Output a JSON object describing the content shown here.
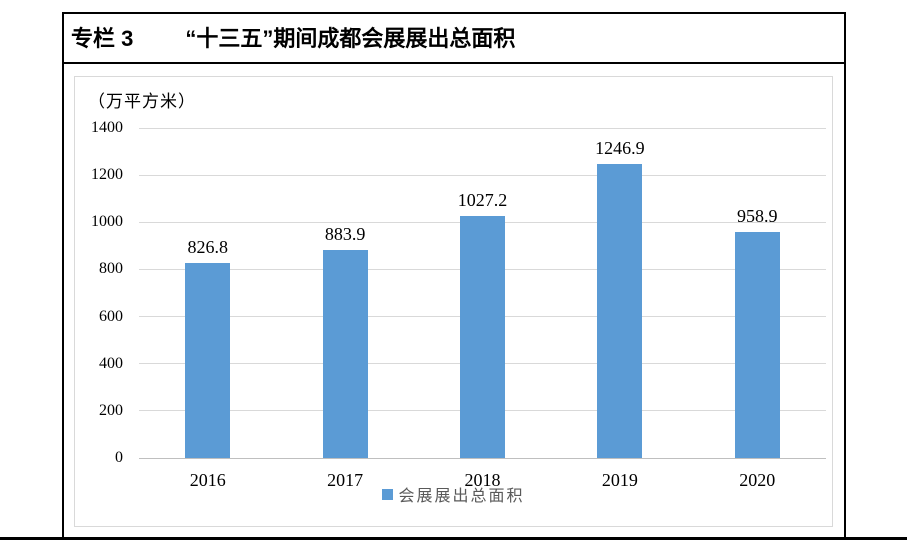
{
  "panel": {
    "title_prefix": "专栏 3",
    "title_main": "“十三五”期间成都会展展出总面积"
  },
  "chart_data": {
    "type": "bar",
    "title": "专栏 3 “十三五”期间成都会展展出总面积",
    "unit_label": "（万平方米）",
    "categories": [
      "2016",
      "2017",
      "2018",
      "2019",
      "2020"
    ],
    "series": [
      {
        "name": "会展展出总面积",
        "values": [
          826.8,
          883.9,
          1027.2,
          1246.9,
          958.9
        ]
      }
    ],
    "value_labels": [
      "826.8",
      "883.9",
      "1027.2",
      "1246.9",
      "958.9"
    ],
    "ylim": [
      0,
      1400
    ],
    "ytick_interval": 200,
    "yticks": [
      0,
      200,
      400,
      600,
      800,
      1000,
      1200,
      1400
    ],
    "grid": true,
    "legend_position": "bottom",
    "bar_color": "#5b9bd5"
  },
  "colors": {
    "bar": "#5b9bd5",
    "gridline": "#d9d9d9",
    "axis_line": "#bfbfbf",
    "frame_border": "#000000",
    "chart_border": "#d9d9d9",
    "legend_text": "#595959",
    "label_text": "#000000"
  }
}
